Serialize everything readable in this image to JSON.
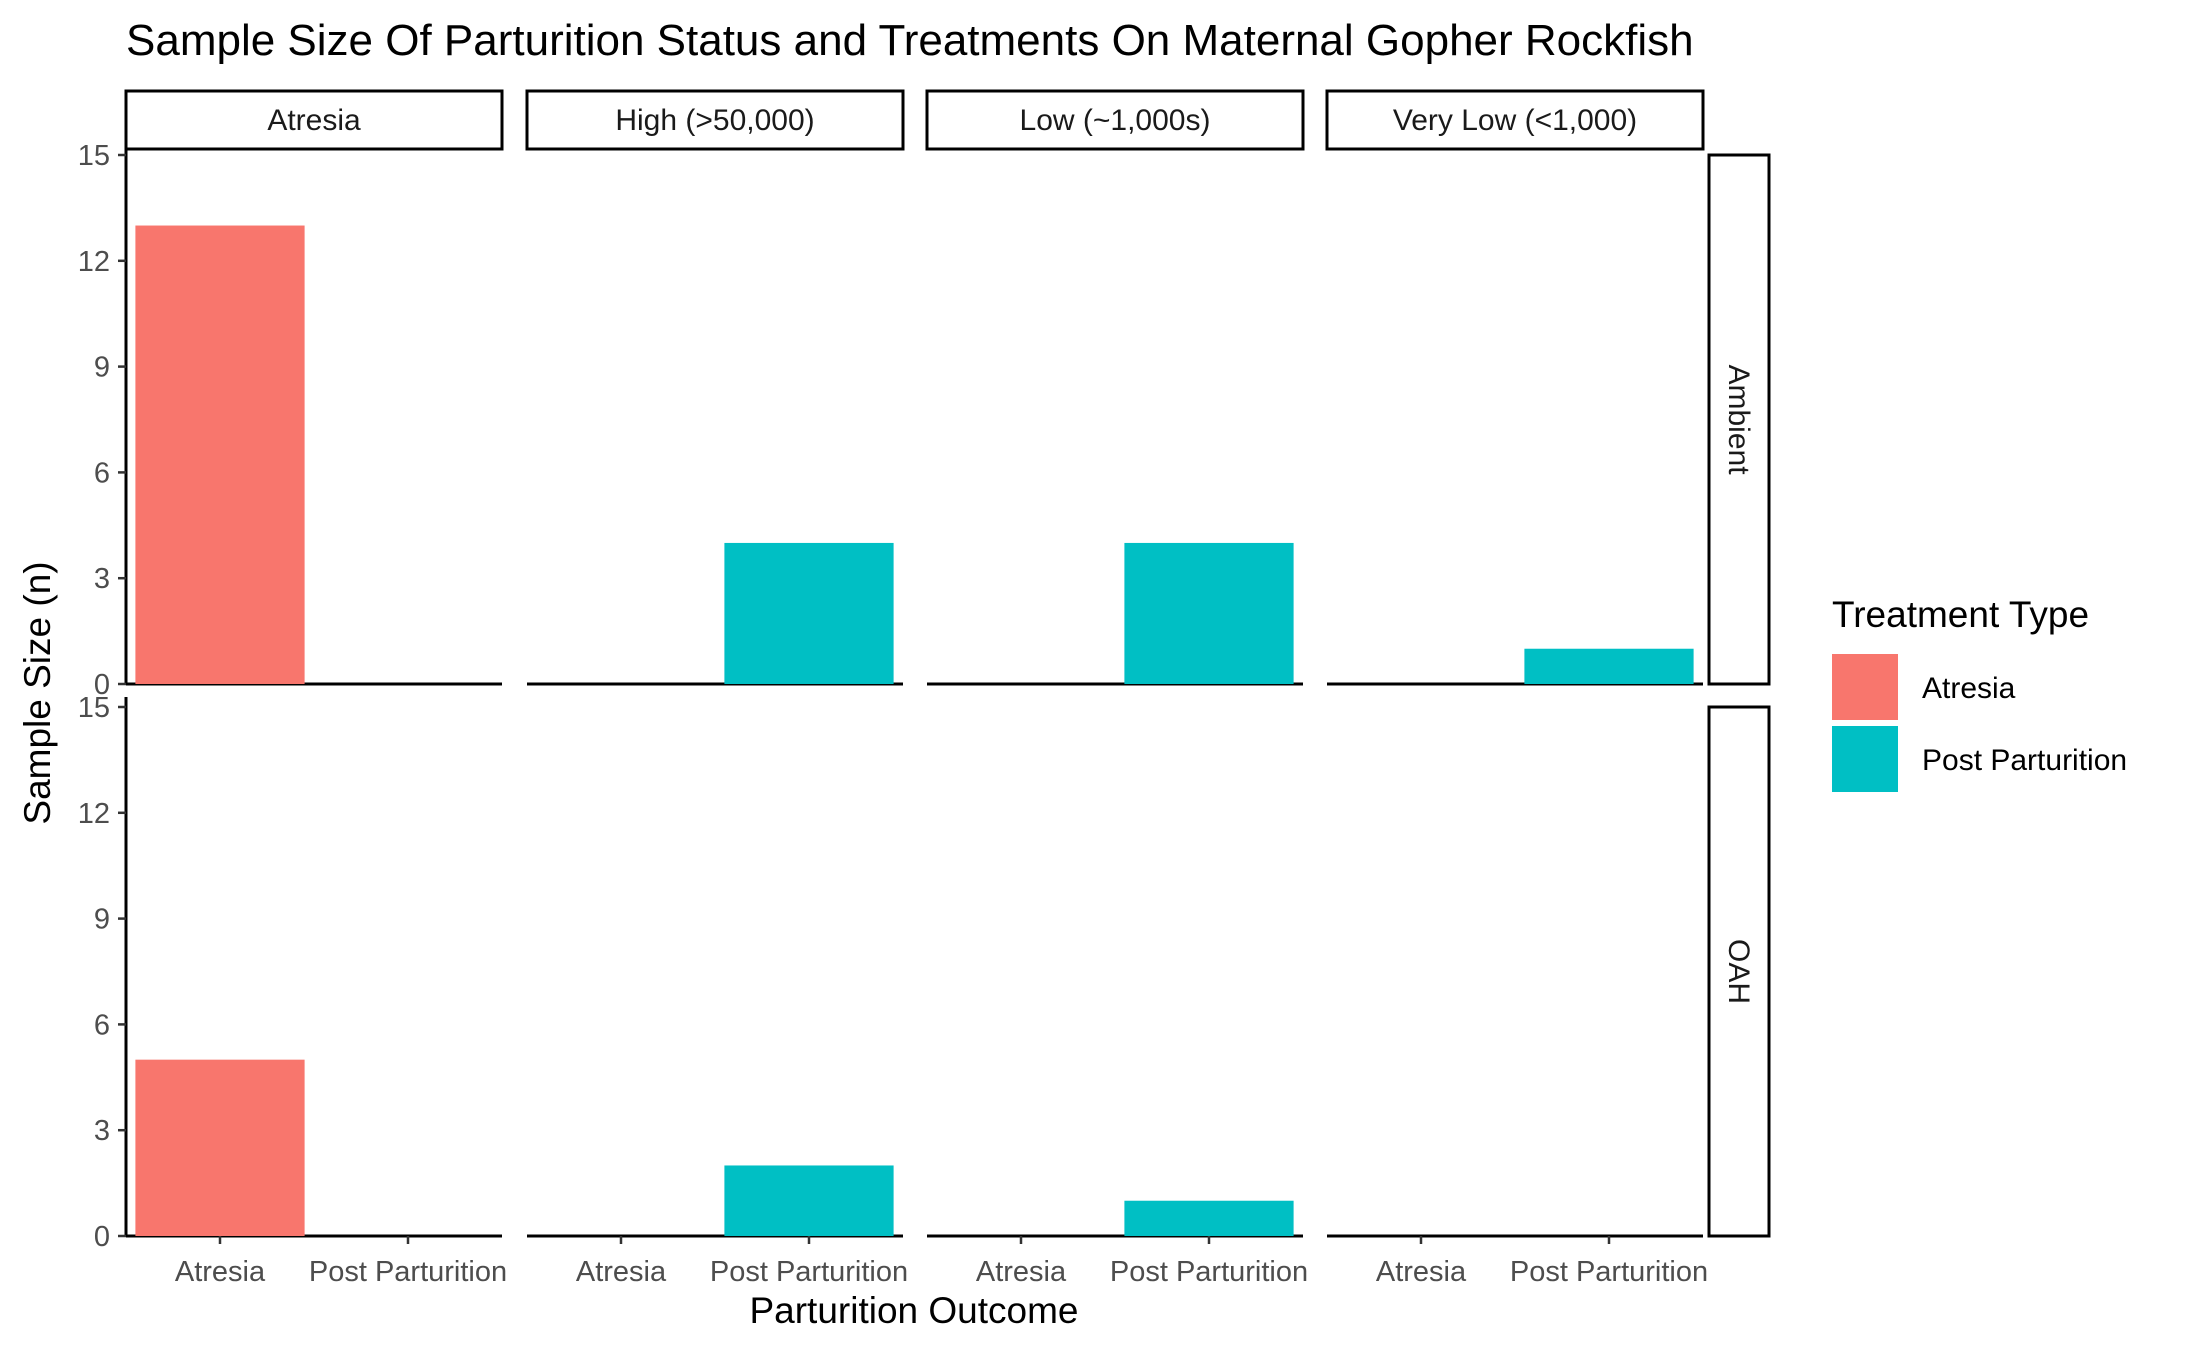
{
  "chart_data": {
    "type": "bar",
    "title": "Sample Size Of Parturition Status and Treatments On Maternal Gopher Rockfish",
    "xlabel": "Parturition Outcome",
    "ylabel": "Sample Size (n)",
    "categories": [
      "Atresia",
      "Post Parturition"
    ],
    "column_facets": [
      "Atresia",
      "High (>50,000)",
      "Low (~1,000s)",
      "Very Low (<1,000)"
    ],
    "row_facets": [
      "Ambient",
      "OAH"
    ],
    "ylim": [
      0,
      15
    ],
    "yticks": [
      "0",
      "3",
      "6",
      "9",
      "12",
      "15"
    ],
    "grid": false,
    "legend": {
      "title": "Treatment Type",
      "position": "right",
      "entries": [
        {
          "name": "Atresia",
          "color": "#F8766D"
        },
        {
          "name": "Post Parturition",
          "color": "#00BFC4"
        }
      ]
    },
    "bars": [
      {
        "row": "Ambient",
        "column": "Atresia",
        "category": "Atresia",
        "value": 13
      },
      {
        "row": "Ambient",
        "column": "High (>50,000)",
        "category": "Post Parturition",
        "value": 4
      },
      {
        "row": "Ambient",
        "column": "Low (~1,000s)",
        "category": "Post Parturition",
        "value": 4
      },
      {
        "row": "Ambient",
        "column": "Very Low (<1,000)",
        "category": "Post Parturition",
        "value": 1
      },
      {
        "row": "OAH",
        "column": "Atresia",
        "category": "Atresia",
        "value": 5
      },
      {
        "row": "OAH",
        "column": "High (>50,000)",
        "category": "Post Parturition",
        "value": 2
      },
      {
        "row": "OAH",
        "column": "Low (~1,000s)",
        "category": "Post Parturition",
        "value": 1
      }
    ]
  }
}
